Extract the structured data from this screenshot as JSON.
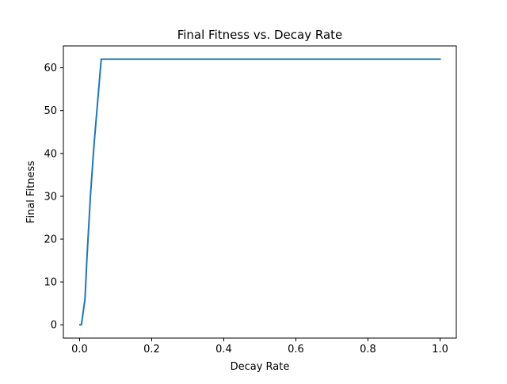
{
  "chart_data": {
    "type": "line",
    "title": "Final Fitness vs. Decay Rate",
    "xlabel": "Decay Rate",
    "ylabel": "Final Fitness",
    "xlim": [
      -0.045,
      1.045
    ],
    "ylim": [
      -3.1,
      65.1
    ],
    "xticks": [
      0.0,
      0.2,
      0.4,
      0.6,
      0.8,
      1.0
    ],
    "xtick_labels": [
      "0.0",
      "0.2",
      "0.4",
      "0.6",
      "0.8",
      "1.0"
    ],
    "yticks": [
      0,
      10,
      20,
      30,
      40,
      50,
      60
    ],
    "ytick_labels": [
      "0",
      "10",
      "20",
      "30",
      "40",
      "50",
      "60"
    ],
    "grid": false,
    "series": [
      {
        "color": "#1f77b4",
        "x": [
          0.001,
          0.005,
          0.01,
          0.015,
          0.02,
          0.03,
          0.04,
          0.05,
          0.06,
          0.1,
          0.2,
          0.3,
          0.4,
          0.5,
          0.6,
          0.7,
          0.8,
          0.9,
          1.0
        ],
        "y": [
          0,
          0,
          3,
          6,
          15,
          30,
          42,
          52,
          62,
          62,
          62,
          62,
          62,
          62,
          62,
          62,
          62,
          62,
          62
        ]
      }
    ]
  }
}
